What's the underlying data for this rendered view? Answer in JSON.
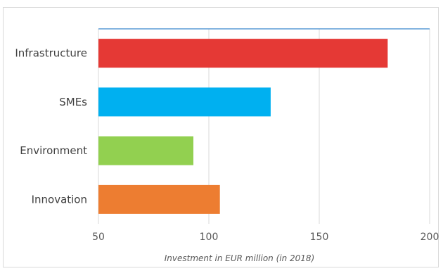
{
  "chart_data": {
    "type": "bar",
    "orientation": "horizontal",
    "categories": [
      "Infrastructure",
      "SMEs",
      "Environment",
      "Innovation"
    ],
    "values": [
      181,
      128,
      93,
      105
    ],
    "colors": [
      "#e53935",
      "#00b0f0",
      "#92d050",
      "#ed7d31"
    ],
    "xlabel": "Investment in EUR million (in 2018)",
    "xlim": [
      50,
      200
    ],
    "xticks": [
      50,
      100,
      150,
      200
    ],
    "grid": "vertical",
    "legend": "none",
    "top_line_color": "#5b9bd5"
  }
}
